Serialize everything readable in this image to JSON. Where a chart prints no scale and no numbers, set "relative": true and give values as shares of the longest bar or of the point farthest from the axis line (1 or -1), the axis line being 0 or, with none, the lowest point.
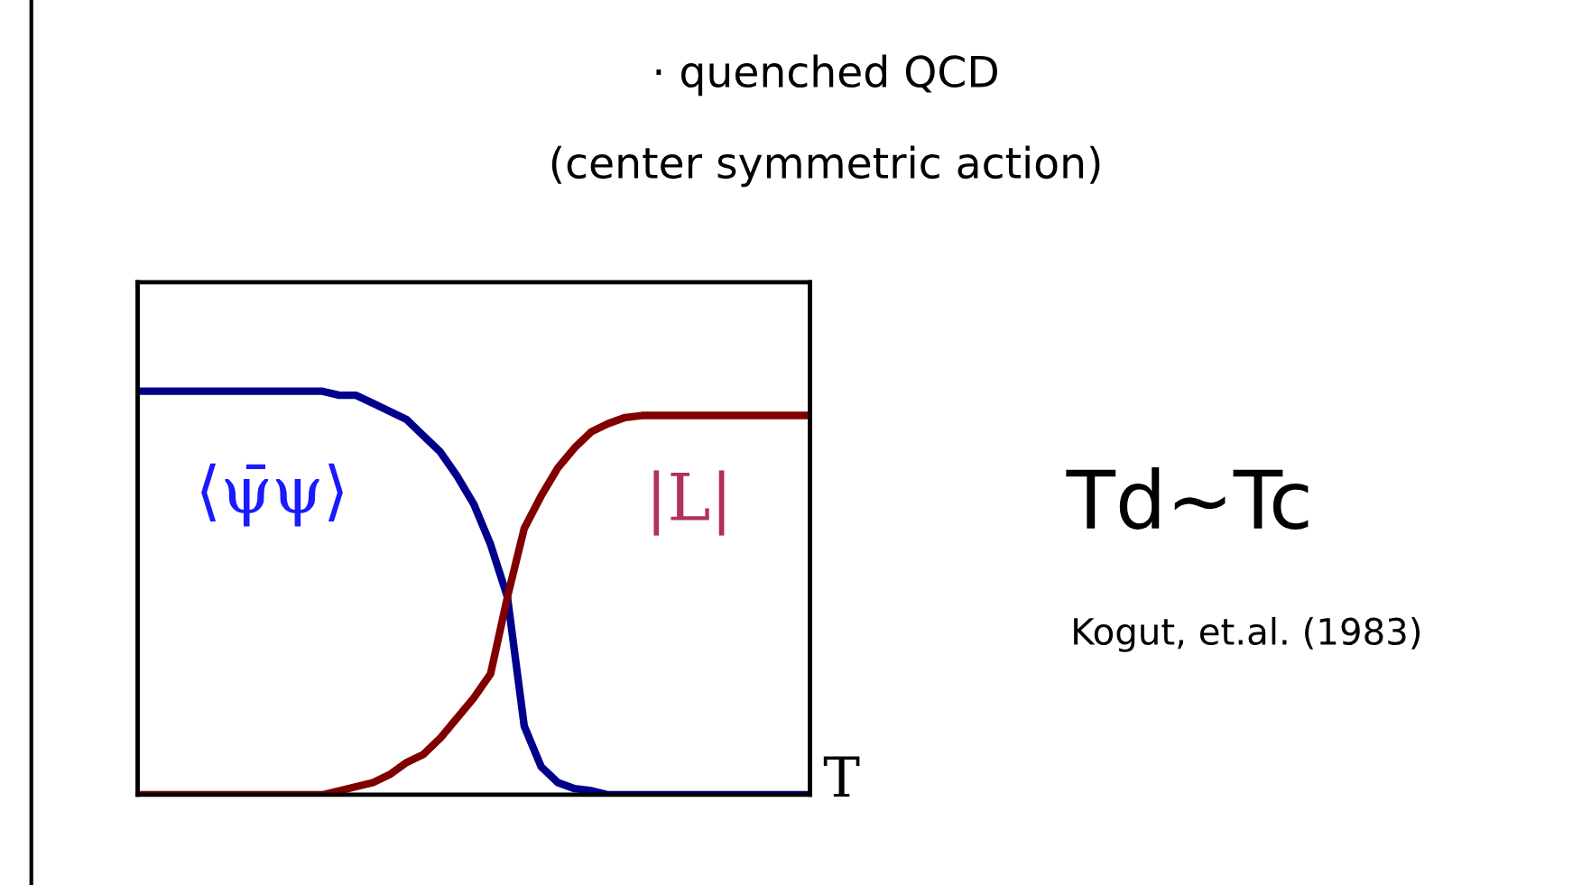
{
  "chart_data": {
    "type": "line",
    "title": "· quenched QCD",
    "subtitle": "(center symmetric action)",
    "xlabel": "T",
    "relative": true,
    "marker": "none",
    "line_style": "solid",
    "annotations": [
      "Td~Tc",
      "Kogut, et.al. (1983)"
    ],
    "categories": [
      null,
      null,
      null,
      null,
      null,
      null,
      null,
      null,
      null,
      null,
      null,
      null,
      null,
      null,
      null,
      null,
      null,
      null,
      null,
      null,
      null,
      null,
      null,
      null,
      null,
      null,
      null,
      null,
      null,
      null,
      null,
      null,
      null,
      null,
      null,
      null,
      null,
      null,
      null,
      null,
      null
    ],
    "series": [
      {
        "name": "⟨ψ̄ψ⟩",
        "color": "#00008b",
        "values": [
          1,
          1,
          1,
          1,
          1,
          1,
          1,
          1,
          1,
          1,
          1,
          1,
          0.99,
          0.99,
          0.97,
          0.95,
          0.93,
          0.89,
          0.85,
          0.79,
          0.72,
          0.62,
          0.49,
          0.17,
          0.07,
          0.03,
          0.015,
          0.01,
          0,
          0,
          0,
          0,
          0,
          0,
          0,
          0,
          0,
          0,
          0,
          0,
          0
        ]
      },
      {
        "name": "|L|",
        "color": "#800000",
        "values": [
          0,
          0,
          0,
          0,
          0,
          0,
          0,
          0,
          0,
          0,
          0,
          0,
          0.01,
          0.02,
          0.03,
          0.05,
          0.08,
          0.1,
          0.14,
          0.19,
          0.24,
          0.3,
          0.49,
          0.66,
          0.74,
          0.81,
          0.86,
          0.9,
          0.92,
          0.935,
          0.94,
          0.94,
          0.94,
          0.94,
          0.94,
          0.94,
          0.94,
          0.94,
          0.94,
          0.94,
          0.94
        ]
      }
    ]
  }
}
